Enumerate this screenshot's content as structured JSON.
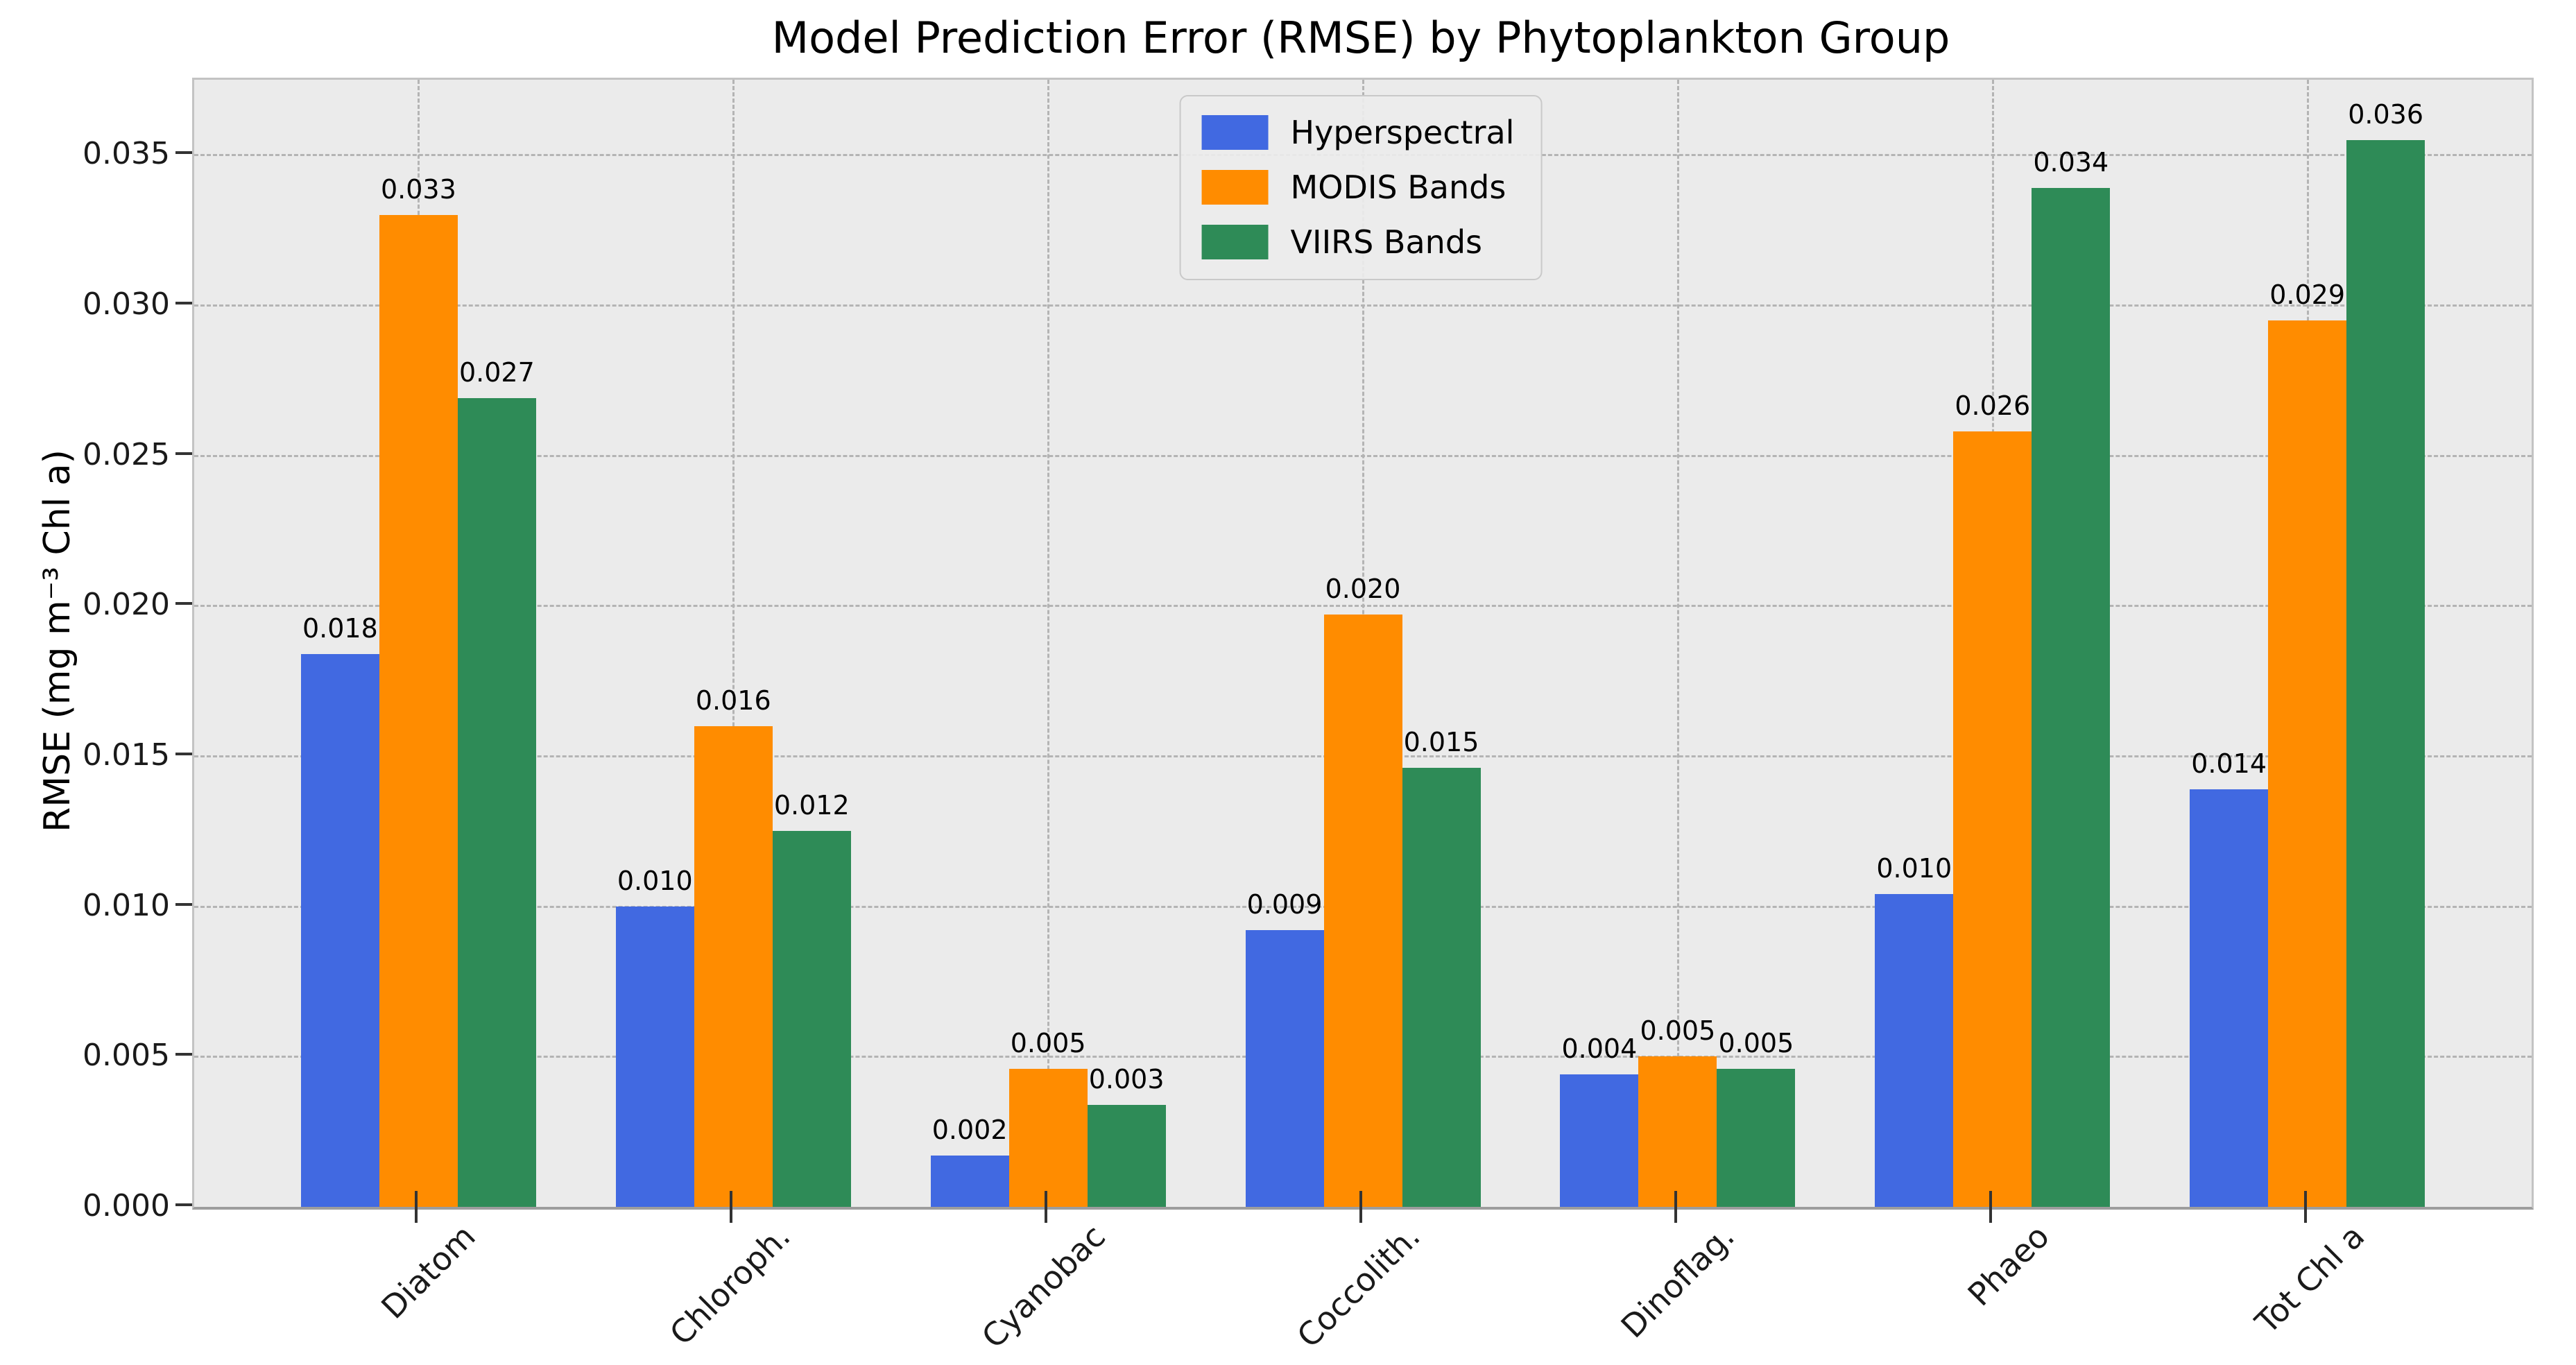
{
  "title": "Model Prediction Error (RMSE) by Phytoplankton Group",
  "y_axis": {
    "label": "RMSE (mg m⁻³ Chl a)",
    "tick_labels": [
      "0.000",
      "0.005",
      "0.010",
      "0.015",
      "0.020",
      "0.025",
      "0.030",
      "0.035"
    ]
  },
  "colors": {
    "hyperspectral": "#4169E1",
    "modis_bands": "#FF8C00",
    "viirs_bands": "#2E8B57",
    "axes_background": "#EBEBEB",
    "grid": "#B4B4B4",
    "figure_background": "#FFFFFF"
  },
  "chart_data": {
    "type": "bar",
    "title": "Model Prediction Error (RMSE) by Phytoplankton Group",
    "xlabel": "",
    "ylabel": "RMSE (mg m⁻³ Chl a)",
    "categories": [
      "Diatom",
      "Chloroph.",
      "Cyanobac",
      "Coccolith.",
      "Dinoflag.",
      "Phaeo",
      "Tot Chl a"
    ],
    "series": [
      {
        "name": "Hyperspectral",
        "color": "#4169E1",
        "values": [
          0.0184,
          0.01,
          0.0017,
          0.0092,
          0.0044,
          0.0104,
          0.0139
        ],
        "bar_labels": [
          "0.018",
          "0.010",
          "0.002",
          "0.009",
          "0.004",
          "0.010",
          "0.014"
        ]
      },
      {
        "name": "MODIS Bands",
        "color": "#FF8C00",
        "values": [
          0.033,
          0.016,
          0.0046,
          0.0197,
          0.005,
          0.0258,
          0.0295
        ],
        "bar_labels": [
          "0.033",
          "0.016",
          "0.005",
          "0.020",
          "0.005",
          "0.026",
          "0.029"
        ]
      },
      {
        "name": "VIIRS Bands",
        "color": "#2E8B57",
        "values": [
          0.0269,
          0.0125,
          0.0034,
          0.0146,
          0.0046,
          0.0339,
          0.0355
        ],
        "bar_labels": [
          "0.027",
          "0.012",
          "0.003",
          "0.015",
          "0.005",
          "0.034",
          "0.036"
        ]
      }
    ],
    "ylim": [
      0,
      0.0375
    ],
    "ytick_step": 0.005,
    "grid": {
      "style": "dashed",
      "axes": "both"
    },
    "legend_position": "upper center"
  }
}
